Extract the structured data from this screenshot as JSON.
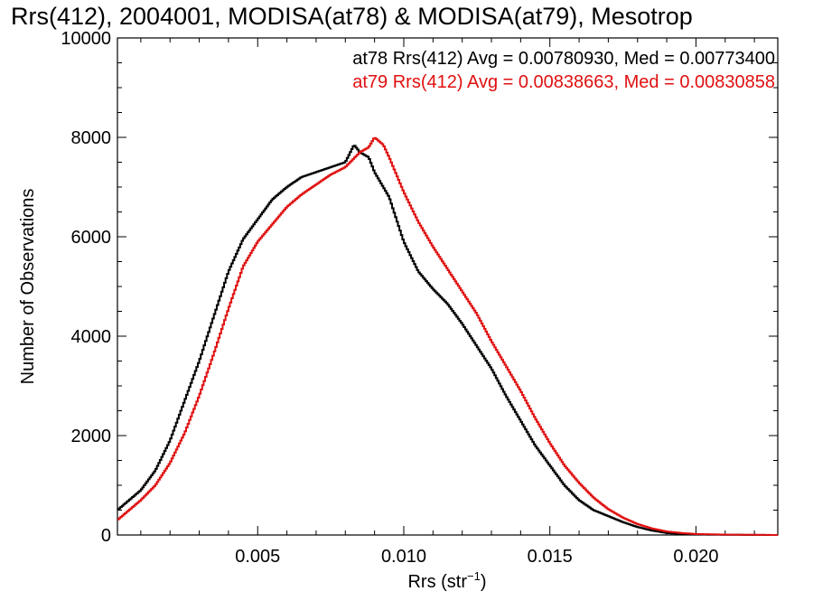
{
  "chart_data": {
    "type": "line",
    "title": "Rrs(412), 2004001, MODISA(at78) & MODISA(at79), Mesotrop",
    "xlabel": "Rrs (str",
    "xlabel_sup": "−1",
    "xlabel_close": ")",
    "ylabel": "Number of Observations",
    "xlim": [
      0.0002,
      0.0228
    ],
    "ylim": [
      0,
      10000
    ],
    "x_ticks": [
      {
        "value": 0.005,
        "label": "0.005"
      },
      {
        "value": 0.01,
        "label": "0.010"
      },
      {
        "value": 0.015,
        "label": "0.015"
      },
      {
        "value": 0.02,
        "label": "0.020"
      }
    ],
    "y_ticks": [
      {
        "value": 0,
        "label": "0"
      },
      {
        "value": 2000,
        "label": "2000"
      },
      {
        "value": 4000,
        "label": "4000"
      },
      {
        "value": 6000,
        "label": "6000"
      },
      {
        "value": 8000,
        "label": "8000"
      },
      {
        "value": 10000,
        "label": "10000"
      }
    ],
    "grid": false,
    "legend_position": "top-right",
    "series": [
      {
        "name": "at78",
        "legend": "at78 Rrs(412) Avg = 0.00780930, Med = 0.00773400",
        "color": "#000000",
        "x": [
          0.0002,
          0.001,
          0.0015,
          0.002,
          0.0025,
          0.003,
          0.0035,
          0.004,
          0.0045,
          0.005,
          0.0055,
          0.006,
          0.0065,
          0.007,
          0.0075,
          0.008,
          0.0083,
          0.0085,
          0.0088,
          0.009,
          0.0095,
          0.01,
          0.0105,
          0.011,
          0.0115,
          0.012,
          0.0125,
          0.013,
          0.0135,
          0.014,
          0.0145,
          0.015,
          0.0155,
          0.016,
          0.0165,
          0.017,
          0.0175,
          0.018,
          0.0185,
          0.019,
          0.0195,
          0.02,
          0.021,
          0.0228
        ],
        "y": [
          500,
          900,
          1300,
          1900,
          2700,
          3500,
          4400,
          5300,
          5950,
          6350,
          6750,
          7000,
          7200,
          7300,
          7400,
          7500,
          7850,
          7700,
          7600,
          7300,
          6800,
          5900,
          5300,
          4950,
          4650,
          4250,
          3800,
          3350,
          2800,
          2300,
          1800,
          1400,
          1000,
          700,
          500,
          380,
          260,
          160,
          90,
          40,
          20,
          10,
          5,
          0
        ]
      },
      {
        "name": "at79",
        "legend": "at79 Rrs(412) Avg = 0.00838663, Med = 0.00830858",
        "color": "#e01010",
        "x": [
          0.0002,
          0.001,
          0.0015,
          0.002,
          0.0025,
          0.003,
          0.0035,
          0.004,
          0.0045,
          0.005,
          0.0055,
          0.006,
          0.0065,
          0.007,
          0.0075,
          0.008,
          0.0085,
          0.0088,
          0.009,
          0.0093,
          0.0095,
          0.01,
          0.0105,
          0.011,
          0.0115,
          0.012,
          0.0125,
          0.013,
          0.0135,
          0.014,
          0.0145,
          0.015,
          0.0155,
          0.016,
          0.0165,
          0.017,
          0.0175,
          0.018,
          0.0185,
          0.019,
          0.0195,
          0.02,
          0.021,
          0.0228
        ],
        "y": [
          300,
          700,
          1000,
          1450,
          2050,
          2800,
          3650,
          4550,
          5400,
          5900,
          6250,
          6600,
          6850,
          7050,
          7250,
          7400,
          7700,
          7800,
          8000,
          7850,
          7600,
          6900,
          6300,
          5800,
          5350,
          4900,
          4450,
          3900,
          3400,
          2900,
          2350,
          1850,
          1400,
          1050,
          750,
          520,
          350,
          220,
          130,
          70,
          40,
          20,
          8,
          0
        ]
      }
    ]
  }
}
